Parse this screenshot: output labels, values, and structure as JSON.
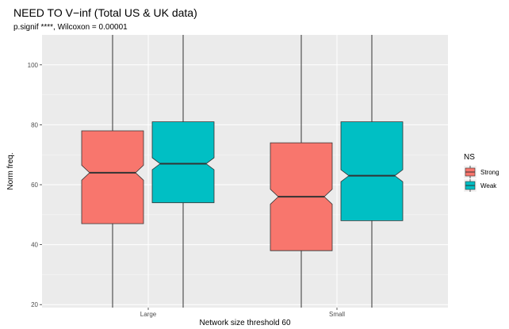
{
  "chart_data": {
    "type": "boxplot",
    "title": "NEED TO V−inf (Total US & UK data)",
    "subtitle": "p.signif ****, Wilcoxon = 0.00001",
    "xlabel": "Network size threshold 60",
    "ylabel": "Norm freq.",
    "ylim": [
      19,
      110
    ],
    "yticks": [
      20,
      40,
      60,
      80,
      100
    ],
    "categories": [
      "Large",
      "Small"
    ],
    "legend": {
      "title": "NS",
      "position": "right"
    },
    "grid": true,
    "notched": true,
    "series": [
      {
        "name": "Strong",
        "color": "#F8766D",
        "boxes": [
          {
            "whisker_low": 19,
            "q1": 47,
            "notch_low": 61.5,
            "median": 64,
            "notch_high": 66.5,
            "q3": 78,
            "whisker_high": 110
          },
          {
            "whisker_low": 19,
            "q1": 38,
            "notch_low": 53.5,
            "median": 56,
            "notch_high": 58.5,
            "q3": 74,
            "whisker_high": 110
          }
        ]
      },
      {
        "name": "Weak",
        "color": "#00BFC4",
        "boxes": [
          {
            "whisker_low": 19,
            "q1": 54,
            "notch_low": 65,
            "median": 67,
            "notch_high": 69,
            "q3": 81,
            "whisker_high": 110
          },
          {
            "whisker_low": 19,
            "q1": 48,
            "notch_low": 61,
            "median": 63,
            "notch_high": 65,
            "q3": 81,
            "whisker_high": 110
          }
        ]
      }
    ]
  }
}
